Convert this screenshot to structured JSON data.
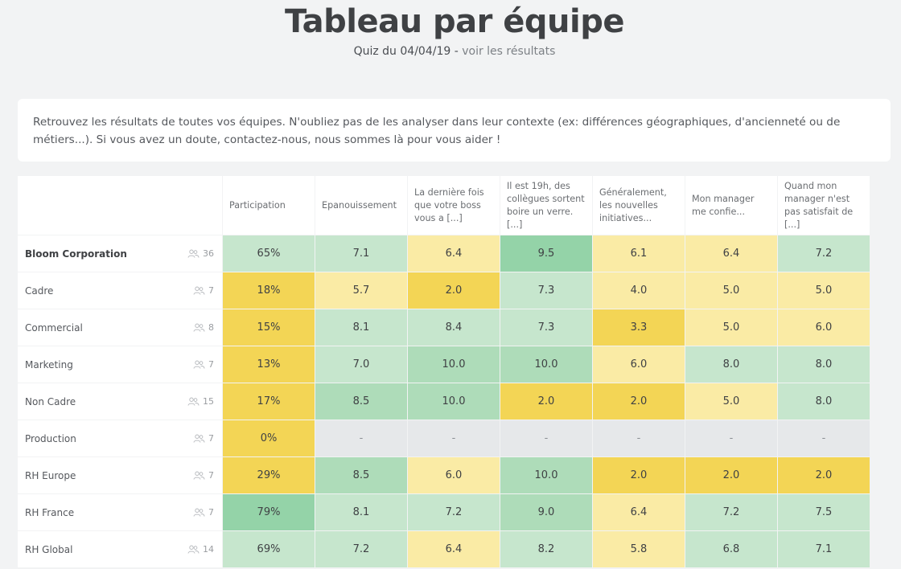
{
  "header": {
    "title": "Tableau par équipe",
    "subtitle_prefix": "Quiz du 04/04/19 -",
    "subtitle_link": "voir les résultats"
  },
  "intro": {
    "text": "Retrouvez les résultats de toutes vos équipes. N'oubliez pas de les analyser dans leur contexte (ex: différences géographiques, d'ancienneté ou de métiers...). Si vous avez un doute, contactez-nous, nous sommes là pour vous aider !"
  },
  "colors": {
    "green_strong": "#94d3a8",
    "green_medium": "#aedcb9",
    "green_light": "#c6e6cd",
    "yellow_light": "#faeba5",
    "yellow_medium": "#f6df7c",
    "yellow_strong": "#f3d555",
    "no_data": "#e6e8ea"
  },
  "table": {
    "columns": [
      "Participation",
      "Epanouissement",
      "La dernière fois que votre boss vous a [...]",
      "Il est 19h, des collègues sortent boire un verre. [...]",
      "Généralement, les nouvelles initiatives...",
      "Mon manager me confie...",
      "Quand mon manager n'est pas satisfait de [...]"
    ],
    "rows": [
      {
        "name": "Bloom Corporation",
        "count": "36",
        "bold": true,
        "values": [
          "65%",
          "7.1",
          "6.4",
          "9.5",
          "6.1",
          "6.4",
          "7.2"
        ],
        "colors": [
          "g1",
          "g1",
          "y0",
          "g3",
          "y0",
          "y0",
          "g1"
        ]
      },
      {
        "name": "Cadre",
        "count": "7",
        "bold": false,
        "values": [
          "18%",
          "5.7",
          "2.0",
          "7.3",
          "4.0",
          "5.0",
          "5.0"
        ],
        "colors": [
          "y2",
          "y0",
          "y2",
          "g1",
          "y0",
          "y0",
          "y0"
        ]
      },
      {
        "name": "Commercial",
        "count": "8",
        "bold": false,
        "values": [
          "15%",
          "8.1",
          "8.4",
          "7.3",
          "3.3",
          "5.0",
          "6.0"
        ],
        "colors": [
          "y2",
          "g1",
          "g1",
          "g1",
          "y2",
          "y0",
          "y0"
        ]
      },
      {
        "name": "Marketing",
        "count": "7",
        "bold": false,
        "values": [
          "13%",
          "7.0",
          "10.0",
          "10.0",
          "6.0",
          "8.0",
          "8.0"
        ],
        "colors": [
          "y2",
          "g1",
          "g2",
          "g2",
          "y0",
          "g1",
          "g1"
        ]
      },
      {
        "name": "Non Cadre",
        "count": "15",
        "bold": false,
        "values": [
          "17%",
          "8.5",
          "10.0",
          "2.0",
          "2.0",
          "5.0",
          "8.0"
        ],
        "colors": [
          "y2",
          "g2",
          "g2",
          "y2",
          "y2",
          "y0",
          "g1"
        ]
      },
      {
        "name": "Production",
        "count": "7",
        "bold": false,
        "values": [
          "0%",
          "-",
          "-",
          "-",
          "-",
          "-",
          "-"
        ],
        "colors": [
          "y2",
          "na",
          "na",
          "na",
          "na",
          "na",
          "na"
        ]
      },
      {
        "name": "RH Europe",
        "count": "7",
        "bold": false,
        "values": [
          "29%",
          "8.5",
          "6.0",
          "10.0",
          "2.0",
          "2.0",
          "2.0"
        ],
        "colors": [
          "y2",
          "g2",
          "y0",
          "g2",
          "y2",
          "y2",
          "y2"
        ]
      },
      {
        "name": "RH France",
        "count": "7",
        "bold": false,
        "values": [
          "79%",
          "8.1",
          "7.2",
          "9.0",
          "6.4",
          "7.2",
          "7.5"
        ],
        "colors": [
          "g3",
          "g1",
          "g1",
          "g2",
          "y0",
          "g1",
          "g1"
        ]
      },
      {
        "name": "RH Global",
        "count": "14",
        "bold": false,
        "values": [
          "69%",
          "7.2",
          "6.4",
          "8.2",
          "5.8",
          "6.8",
          "7.1"
        ],
        "colors": [
          "g1",
          "g1",
          "y0",
          "g1",
          "y0",
          "g1",
          "g1"
        ]
      }
    ]
  }
}
